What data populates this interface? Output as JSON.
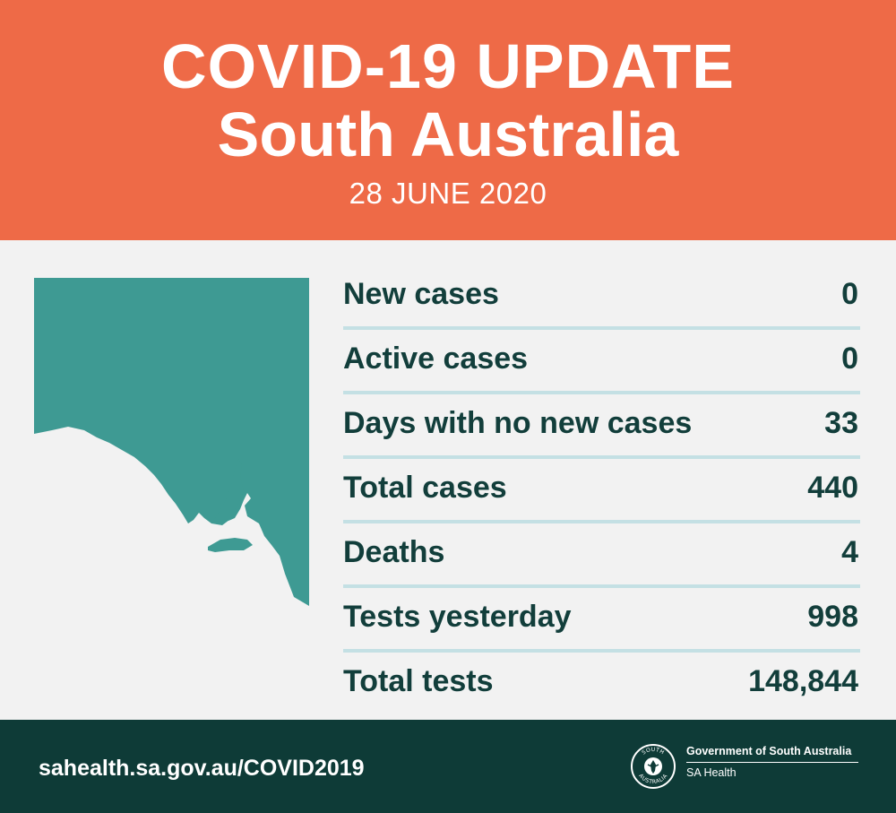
{
  "header": {
    "title_line1": "COVID-19 UPDATE",
    "title_line2": "South Australia",
    "date": "28 JUNE 2020",
    "background_color": "#ee6a47"
  },
  "map": {
    "icon": "south-australia-map-icon",
    "color": "#3e9a93"
  },
  "stats": [
    {
      "label": "New cases",
      "value": "0"
    },
    {
      "label": "Active cases",
      "value": "0"
    },
    {
      "label": "Days with no new cases",
      "value": "33"
    },
    {
      "label": "Total cases",
      "value": "440"
    },
    {
      "label": "Deaths",
      "value": "4"
    },
    {
      "label": "Tests yesterday",
      "value": "998"
    },
    {
      "label": "Total tests",
      "value": "148,844"
    }
  ],
  "footer": {
    "url": "sahealth.sa.gov.au/COVID2019",
    "government": "Government of South Australia",
    "department": "SA Health",
    "crest_text_top": "SOUTH",
    "crest_text_bottom": "AUSTRALIA",
    "background_color": "#0e3b37"
  }
}
